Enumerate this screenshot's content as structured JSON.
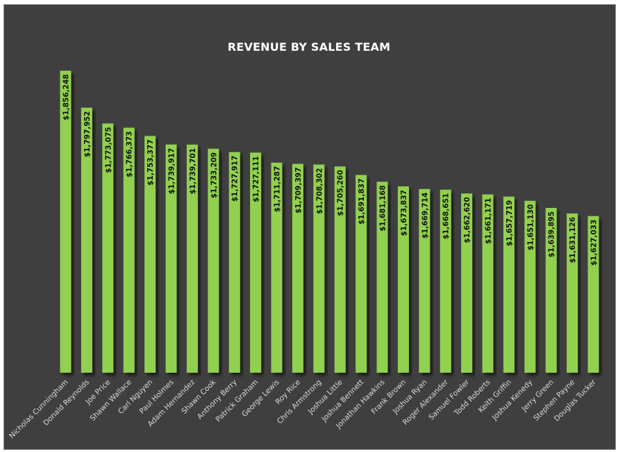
{
  "chart_data": {
    "type": "bar",
    "title": "REVENUE BY SALES TEAM",
    "categories": [
      "Nicholas Cunningham",
      "Donald Reynolds",
      "Joe Price",
      "Shawn Wallace",
      "Carl Nguyen",
      "Paul Holmes",
      "Adam Hernandez",
      "Shawn Cook",
      "Anthony Berry",
      "Patrick Graham",
      "George Lewis",
      "Roy Rice",
      "Chris Armstrong",
      "Joshua Little",
      "Joshua Bennett",
      "Jonathan Hawkins",
      "Frank Brown",
      "Joshua Ryan",
      "Roger Alexander",
      "Samuel Fowler",
      "Todd Roberts",
      "Keith Griffin",
      "Joshua Kenedy",
      "Jerry Green",
      "Stephen Payne",
      "Douglas Tucker"
    ],
    "values": [
      1856248,
      1797952,
      1773075,
      1766373,
      1753377,
      1739917,
      1739701,
      1733209,
      1727917,
      1727111,
      1711287,
      1709397,
      1708302,
      1705260,
      1691837,
      1681168,
      1673837,
      1669714,
      1668651,
      1662620,
      1661171,
      1657719,
      1651130,
      1639895,
      1631126,
      1627033
    ],
    "value_labels": [
      "$1,856,248",
      "$1,797,952",
      "$1,773,075",
      "$1,766,373",
      "$1,753,377",
      "$1,739,917",
      "$1,739,701",
      "$1,733,209",
      "$1,727,917",
      "$1,727,111",
      "$1,711,287",
      "$1,709,397",
      "$1,708,302",
      "$1,705,260",
      "$1,691,837",
      "$1,681,168",
      "$1,673,837",
      "$1,669,714",
      "$1,668,651",
      "$1,662,620",
      "$1,661,171",
      "$1,657,719",
      "$1,651,130",
      "$1,639,895",
      "$1,631,126",
      "$1,627,033"
    ],
    "ylim": [
      1380000,
      1880000
    ],
    "grid": false,
    "legend": "none",
    "colors": {
      "bar": "#92d050",
      "background": "#3f3f3f",
      "title": "#ffffff",
      "category_text": "#d9d9d9",
      "value_text": "#111111"
    }
  }
}
